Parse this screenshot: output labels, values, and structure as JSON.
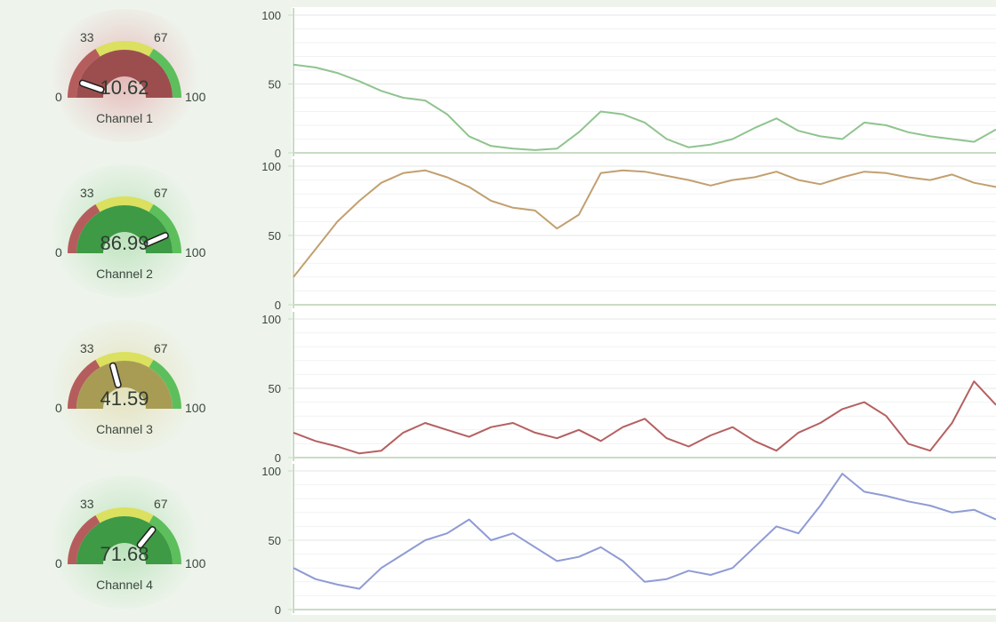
{
  "colors": {
    "red": "#b55d5d",
    "yellow": "#dbe05e",
    "green": "#5cbf5c",
    "needle": "#ffffff",
    "grid": "#e1e6e1",
    "axis": "#c9dcc5"
  },
  "gauges": [
    {
      "name": "Channel 1",
      "value": 10.62,
      "display": "10.62",
      "min_label": "0",
      "t1_label": "33",
      "t2_label": "67",
      "max_label": "100",
      "inner_color": "#9c4e4e",
      "glow_color": "#e5b7b7"
    },
    {
      "name": "Channel 2",
      "value": 86.99,
      "display": "86.99",
      "min_label": "0",
      "t1_label": "33",
      "t2_label": "67",
      "max_label": "100",
      "inner_color": "#3e9a44",
      "glow_color": "#b9e2b9"
    },
    {
      "name": "Channel 3",
      "value": 41.59,
      "display": "41.59",
      "min_label": "0",
      "t1_label": "33",
      "t2_label": "67",
      "max_label": "100",
      "inner_color": "#a89c55",
      "glow_color": "#e4e0ba"
    },
    {
      "name": "Channel 4",
      "value": 71.68,
      "display": "71.68",
      "min_label": "0",
      "t1_label": "33",
      "t2_label": "67",
      "max_label": "100",
      "inner_color": "#3e9a44",
      "glow_color": "#b9e2b9"
    }
  ],
  "chart_data": {
    "type": "line",
    "x": [
      0,
      25,
      50,
      75,
      100,
      125,
      150,
      175,
      200,
      225,
      250,
      275,
      300,
      325,
      350,
      375,
      400,
      425,
      450,
      475,
      500,
      525,
      550,
      575,
      600,
      625,
      650,
      675,
      700,
      725,
      750,
      775,
      800
    ],
    "ylim": [
      0,
      100
    ],
    "yticks": [
      "0",
      "50",
      "100"
    ],
    "series": [
      {
        "color": "#8fc48f",
        "values": [
          64,
          62,
          58,
          52,
          45,
          40,
          38,
          28,
          12,
          5,
          3,
          2,
          3,
          15,
          30,
          28,
          22,
          10,
          4,
          6,
          10,
          18,
          25,
          16,
          12,
          10,
          22,
          20,
          15,
          12,
          10,
          8,
          17
        ]
      },
      {
        "color": "#c2a070",
        "values": [
          20,
          40,
          60,
          75,
          88,
          95,
          97,
          92,
          85,
          75,
          70,
          68,
          55,
          65,
          95,
          97,
          96,
          93,
          90,
          86,
          90,
          92,
          96,
          90,
          87,
          92,
          96,
          95,
          92,
          90,
          94,
          88,
          85
        ]
      },
      {
        "color": "#b56060",
        "values": [
          18,
          12,
          8,
          3,
          5,
          18,
          25,
          20,
          15,
          22,
          25,
          18,
          14,
          20,
          12,
          22,
          28,
          14,
          8,
          16,
          22,
          12,
          5,
          18,
          25,
          35,
          40,
          30,
          10,
          5,
          25,
          55,
          38
        ]
      },
      {
        "color": "#8f9bd4",
        "values": [
          30,
          22,
          18,
          15,
          30,
          40,
          50,
          55,
          65,
          50,
          55,
          45,
          35,
          38,
          45,
          35,
          20,
          22,
          28,
          25,
          30,
          45,
          60,
          55,
          75,
          98,
          85,
          82,
          78,
          75,
          70,
          72,
          65
        ]
      }
    ]
  }
}
